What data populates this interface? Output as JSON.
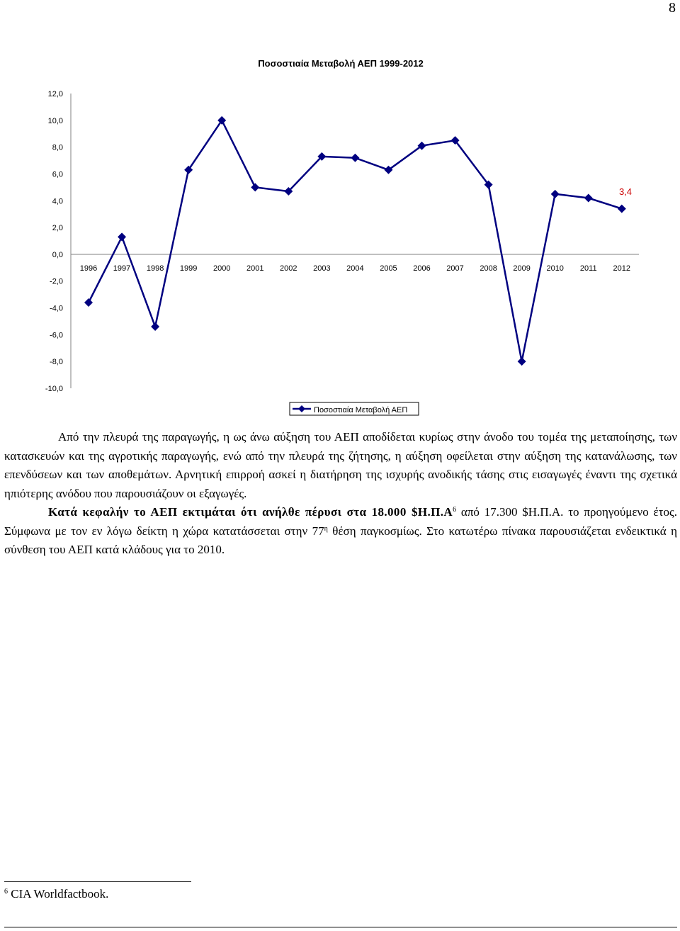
{
  "page": {
    "number": "8"
  },
  "chart_data": {
    "type": "line",
    "title": "Ποσοστιαία Μεταβολή ΑΕΠ 1999-2012",
    "categories": [
      "1996",
      "1997",
      "1998",
      "1999",
      "2000",
      "2001",
      "2002",
      "2003",
      "2004",
      "2005",
      "2006",
      "2007",
      "2008",
      "2009",
      "2010",
      "2011",
      "2012"
    ],
    "series": [
      {
        "name": "Ποσοστιαία Μεταβολή ΑΕΠ",
        "values": [
          -3.6,
          1.3,
          -5.4,
          6.3,
          10.0,
          5.0,
          4.7,
          7.3,
          7.2,
          6.3,
          8.1,
          8.5,
          5.2,
          -8.0,
          4.5,
          4.2,
          3.4
        ]
      }
    ],
    "yticks": [
      "12,0",
      "10,0",
      "8,0",
      "6,0",
      "4,0",
      "2,0",
      "0,0",
      "-2,0",
      "-4,0",
      "-6,0",
      "-8,0",
      "-10,0"
    ],
    "ylim": [
      -10,
      12
    ],
    "annotation": {
      "label": "3,4",
      "color": "#cc0000"
    },
    "line_color": "#000080",
    "grid": false,
    "legend_position": "bottom-center"
  },
  "text": {
    "p1": "Από την πλευρά της παραγωγής, η ως άνω αύξηση του ΑΕΠ αποδίδεται κυρίως στην άνοδο του τομέα της μεταποίησης, των κατασκευών και της αγροτικής παραγωγής, ενώ από την πλευρά της ζήτησης, η αύξηση οφείλεται στην αύξηση της κατανάλωσης, των επενδύσεων και των αποθεμάτων. Αρνητική επιρροή ασκεί η διατήρηση της ισχυρής ανοδικής τάσης στις εισαγωγές έναντι της σχετικά ηπιότερης ανόδου που παρουσιάζουν οι εξαγωγές.",
    "p2_bold": "Κατά κεφαλήν το ΑΕΠ εκτιμάται ότι ανήλθε πέρυσι στα 18.000 $Η.Π.Α",
    "p2_sup1": "6",
    "p2_mid": " από 17.300 $Η.Π.Α. το προηγούμενο έτος. Σύμφωνα με τον εν λόγω δείκτη η χώρα κατατάσσεται στην 77",
    "p2_sup2": "η",
    "p2_end": " θέση παγκοσμίως. Στο κατωτέρω πίνακα παρουσιάζεται ενδεικτικά η σύνθεση του ΑΕΠ κατά κλάδους για το 2010."
  },
  "footnote": {
    "mark": "6",
    "text": " CIA Worldfactbook."
  }
}
